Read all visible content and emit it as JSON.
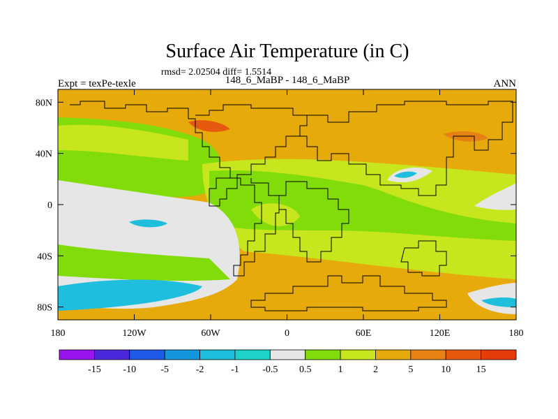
{
  "chart_data": {
    "type": "heatmap",
    "title": "Surface Air Temperature (in C)",
    "subtitle": "rmsd= 2.02504 diff= 1.5514",
    "experiment_label": "Expt = texPe-texle",
    "comparison_label": "148_6_MaBP - 148_6_MaBP",
    "period_label": "ANN",
    "x_axis": {
      "range": [
        -180,
        180
      ],
      "ticks": [
        {
          "value": -180,
          "label": "180"
        },
        {
          "value": -120,
          "label": "120W"
        },
        {
          "value": -60,
          "label": "60W"
        },
        {
          "value": 0,
          "label": "0"
        },
        {
          "value": 60,
          "label": "60E"
        },
        {
          "value": 120,
          "label": "120E"
        },
        {
          "value": 180,
          "label": "180"
        }
      ]
    },
    "y_axis": {
      "range": [
        -90,
        90
      ],
      "ticks": [
        {
          "value": 80,
          "label": "80N"
        },
        {
          "value": 40,
          "label": "40N"
        },
        {
          "value": 0,
          "label": "0"
        },
        {
          "value": -40,
          "label": "40S"
        },
        {
          "value": -80,
          "label": "80S"
        }
      ]
    },
    "colorbar": {
      "labels": [
        "-15",
        "-10",
        "-5",
        "-2",
        "-1",
        "-0.5",
        "0.5",
        "1",
        "2",
        "5",
        "10",
        "15"
      ],
      "colors": [
        "#9a14f0",
        "#4b28dc",
        "#1e5ae6",
        "#1496dc",
        "#1ebedc",
        "#1ed2c8",
        "#e6e6e6",
        "#82dc0a",
        "#c8e61e",
        "#e6aa0a",
        "#e68214",
        "#e65a10",
        "#e63c0a"
      ]
    },
    "field_regions": [
      {
        "level": "0.5 to 1",
        "color": "#82dc0a",
        "lon": [
          -180,
          -60
        ],
        "lat": [
          10,
          50
        ]
      },
      {
        "level": "-0.5 to 0.5",
        "color": "#e6e6e6",
        "lon": [
          -180,
          -42
        ],
        "lat": [
          -50,
          20
        ]
      },
      {
        "level": "-2 to -1",
        "color": "#1ebedc",
        "lon": [
          -180,
          -75
        ],
        "lat": [
          -82,
          -62
        ]
      },
      {
        "level": "2 to 5",
        "color": "#e6aa0a",
        "lon": [
          -60,
          180
        ],
        "lat": [
          30,
          90
        ]
      },
      {
        "level": "2 to 5",
        "color": "#e6aa0a",
        "lon": [
          0,
          120
        ],
        "lat": [
          -80,
          -40
        ]
      },
      {
        "level": "1 to 2",
        "color": "#c8e61e",
        "lon": [
          -30,
          180
        ],
        "lat": [
          -30,
          30
        ]
      }
    ]
  }
}
